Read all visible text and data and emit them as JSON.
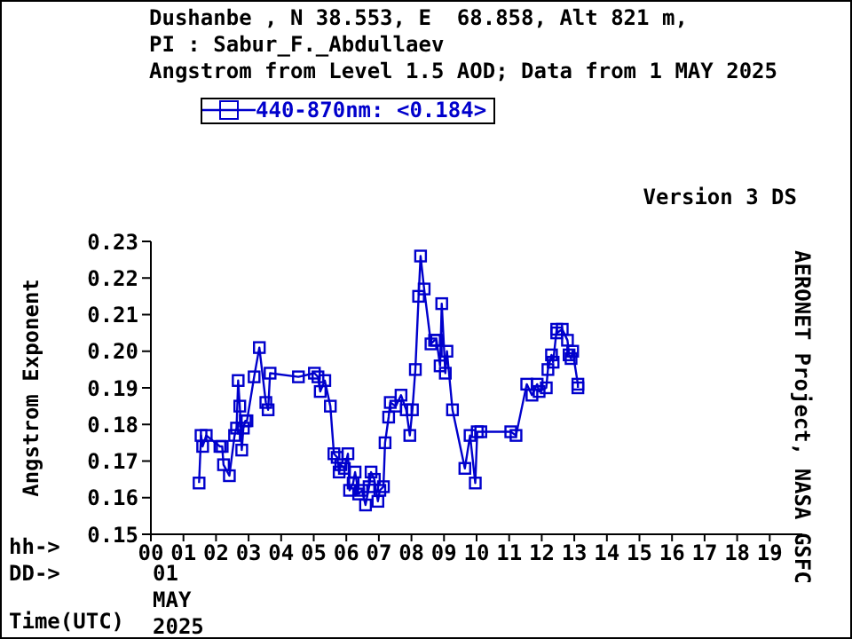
{
  "chart_data": {
    "type": "line",
    "title": "Dushanbe , N 38.553, E  68.858, Alt 821 m,",
    "subtitle": "PI : Sabur_F._Abdullaev\nAngstrom from Level 1.5 AOD; Data from 1 MAY 2025",
    "ylabel": "Angstrom Exponent",
    "xlabel": "Time(UTC)",
    "annotations": [
      "Version 3 DS",
      "AERONET Project, NASA GSFC",
      "hh->",
      "DD->",
      "01",
      "MAY",
      "2025"
    ],
    "xlim": [
      0,
      20
    ],
    "xticks": [
      {
        "value": 0,
        "label": "00"
      },
      {
        "value": 1,
        "label": "01"
      },
      {
        "value": 2,
        "label": "02"
      },
      {
        "value": 3,
        "label": "03"
      },
      {
        "value": 4,
        "label": "04"
      },
      {
        "value": 5,
        "label": "05"
      },
      {
        "value": 6,
        "label": "06"
      },
      {
        "value": 7,
        "label": "07"
      },
      {
        "value": 8,
        "label": "08"
      },
      {
        "value": 9,
        "label": "09"
      },
      {
        "value": 10,
        "label": "10"
      },
      {
        "value": 11,
        "label": "11"
      },
      {
        "value": 12,
        "label": "12"
      },
      {
        "value": 13,
        "label": "13"
      },
      {
        "value": 14,
        "label": "14"
      },
      {
        "value": 15,
        "label": "15"
      },
      {
        "value": 16,
        "label": "16"
      },
      {
        "value": 17,
        "label": "17"
      },
      {
        "value": 18,
        "label": "18"
      },
      {
        "value": 19,
        "label": "19"
      }
    ],
    "ylim": [
      0.15,
      0.23
    ],
    "yticks": [
      {
        "value": 0.15,
        "label": "0.15"
      },
      {
        "value": 0.16,
        "label": "0.16"
      },
      {
        "value": 0.17,
        "label": "0.17"
      },
      {
        "value": 0.18,
        "label": "0.18"
      },
      {
        "value": 0.19,
        "label": "0.19"
      },
      {
        "value": 0.2,
        "label": "0.20"
      },
      {
        "value": 0.21,
        "label": "0.21"
      },
      {
        "value": 0.22,
        "label": "0.22"
      },
      {
        "value": 0.23,
        "label": "0.23"
      }
    ],
    "grid": false,
    "legend": "top left",
    "marker": "square",
    "line_style": "solid",
    "x": [
      1.48,
      1.54,
      1.59,
      1.7,
      2.12,
      2.19,
      2.23,
      2.41,
      2.57,
      2.63,
      2.68,
      2.73,
      2.79,
      2.84,
      2.9,
      2.95,
      3.17,
      3.33,
      3.53,
      3.6,
      3.66,
      4.53,
      5.02,
      5.13,
      5.2,
      5.34,
      5.51,
      5.62,
      5.72,
      5.78,
      5.83,
      5.94,
      6.05,
      6.1,
      6.21,
      6.27,
      6.38,
      6.48,
      6.59,
      6.7,
      6.76,
      6.86,
      6.97,
      7.03,
      7.14,
      7.19,
      7.3,
      7.35,
      7.52,
      7.68,
      7.84,
      7.95,
      8.03,
      8.12,
      8.22,
      8.28,
      8.39,
      8.6,
      8.71,
      8.77,
      8.88,
      8.93,
      9.04,
      9.09,
      9.26,
      9.64,
      9.8,
      9.96,
      10.02,
      10.13,
      11.05,
      11.21,
      11.54,
      11.7,
      11.86,
      11.92,
      12.14,
      12.19,
      12.3,
      12.35,
      12.46,
      12.46,
      12.63,
      12.79,
      12.84,
      12.9,
      12.95,
      13.11,
      13.11
    ],
    "series": [
      {
        "name": "440-870nm: <0.184>",
        "color": "#0000cc",
        "values": [
          0.164,
          0.177,
          0.174,
          0.177,
          0.174,
          0.174,
          0.169,
          0.166,
          0.177,
          0.179,
          0.192,
          0.185,
          0.173,
          0.179,
          0.181,
          0.181,
          0.193,
          0.201,
          0.186,
          0.184,
          0.194,
          0.193,
          0.194,
          0.193,
          0.189,
          0.192,
          0.185,
          0.172,
          0.171,
          0.167,
          0.169,
          0.168,
          0.172,
          0.162,
          0.164,
          0.167,
          0.161,
          0.162,
          0.158,
          0.163,
          0.167,
          0.165,
          0.159,
          0.162,
          0.163,
          0.175,
          0.182,
          0.186,
          0.185,
          0.188,
          0.184,
          0.177,
          0.184,
          0.195,
          0.215,
          0.226,
          0.217,
          0.202,
          0.203,
          0.203,
          0.196,
          0.213,
          0.194,
          0.2,
          0.184,
          0.168,
          0.177,
          0.164,
          0.178,
          0.178,
          0.178,
          0.177,
          0.191,
          0.188,
          0.191,
          0.189,
          0.19,
          0.195,
          0.199,
          0.197,
          0.206,
          0.205,
          0.206,
          0.203,
          0.199,
          0.198,
          0.2,
          0.191,
          0.19
        ]
      }
    ]
  }
}
